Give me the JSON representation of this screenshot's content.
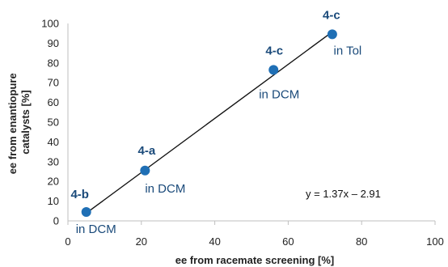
{
  "chart_data": {
    "type": "scatter",
    "xlabel": "ee from racemate screening [%]",
    "ylabel": [
      "ee from enantiopure",
      "catalysts [%]"
    ],
    "xlim": [
      0,
      100
    ],
    "ylim": [
      0,
      100
    ],
    "xticks": [
      0,
      20,
      40,
      60,
      80,
      100
    ],
    "yticks": [
      0,
      10,
      20,
      30,
      40,
      50,
      60,
      70,
      80,
      90,
      100
    ],
    "grid": false,
    "point_color": "#1f6fb5",
    "label_color": "#1a4a7a",
    "points": [
      {
        "x": 5,
        "y": 4.5,
        "label": "4-b",
        "condition": "in DCM"
      },
      {
        "x": 21,
        "y": 25.5,
        "label": "4-a",
        "condition": "in DCM"
      },
      {
        "x": 56,
        "y": 76.5,
        "label": "4-c",
        "condition": "in DCM"
      },
      {
        "x": 72,
        "y": 94.5,
        "label": "4-c",
        "condition": "in Tol"
      }
    ],
    "trendline": {
      "slope": 1.37,
      "intercept": -2.91,
      "x_range": [
        5,
        72
      ],
      "equation": "y = 1.37x – 2.91"
    }
  }
}
